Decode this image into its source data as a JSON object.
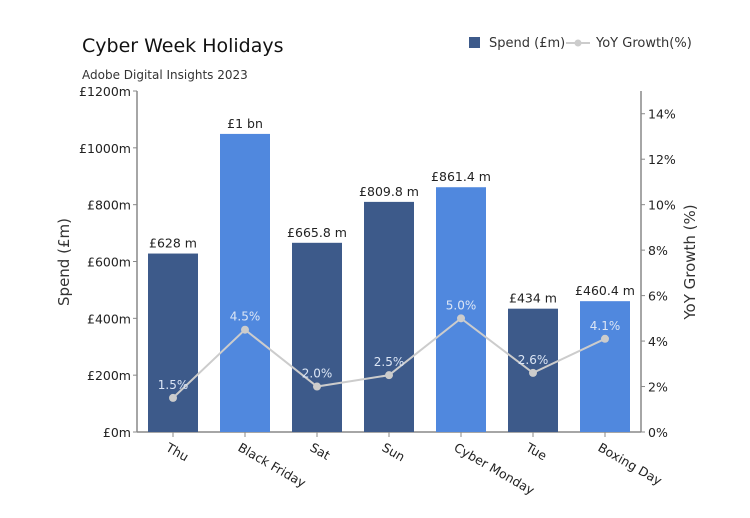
{
  "chart_data": {
    "type": "bar",
    "title": "Cyber Week Holidays",
    "subtitle": "Adobe Digital Insights 2023",
    "categories": [
      "Thu",
      "Black Friday",
      "Sat",
      "Sun",
      "Cyber Monday",
      "Tue",
      "Boxing Day"
    ],
    "series": [
      {
        "name": "Spend (£m)",
        "type": "bar",
        "axis": "left",
        "values": [
          628,
          1049,
          665.8,
          809.8,
          861.4,
          434,
          460.4
        ],
        "labels": [
          "£628 m",
          "£1 bn",
          "£665.8 m",
          "£809.8 m",
          "£861.4 m",
          "£434 m",
          "£460.4 m"
        ],
        "highlighted": [
          false,
          true,
          false,
          false,
          true,
          false,
          true
        ]
      },
      {
        "name": "YoY Growth(%)",
        "type": "line",
        "axis": "right",
        "values": [
          1.5,
          4.5,
          2.0,
          2.5,
          5.0,
          2.6,
          4.1
        ],
        "labels": [
          "1.5%",
          "4.5%",
          "2.0%",
          "2.5%",
          "5.0%",
          "2.6%",
          "4.1%"
        ]
      }
    ],
    "ylabel": "Spend (£m)",
    "y2label": "YoY Growth (%)",
    "ylim": [
      0,
      1200
    ],
    "y2lim": [
      0,
      15
    ],
    "yticks": [
      "£0m",
      "£200m",
      "£400m",
      "£600m",
      "£800m",
      "£1000m",
      "£1200m"
    ],
    "ytick_values": [
      0,
      200,
      400,
      600,
      800,
      1000,
      1200
    ],
    "y2ticks": [
      "0%",
      "2%",
      "4%",
      "6%",
      "8%",
      "10%",
      "12%",
      "14%"
    ],
    "y2tick_values": [
      0,
      2,
      4,
      6,
      8,
      10,
      12,
      14
    ],
    "legend_position": "top-right",
    "grid": false,
    "colors": {
      "bar_dark": "#3d5a8a",
      "bar_light": "#5088de",
      "line": "#cccccc",
      "axis": "#888888",
      "text": "#222222"
    }
  }
}
